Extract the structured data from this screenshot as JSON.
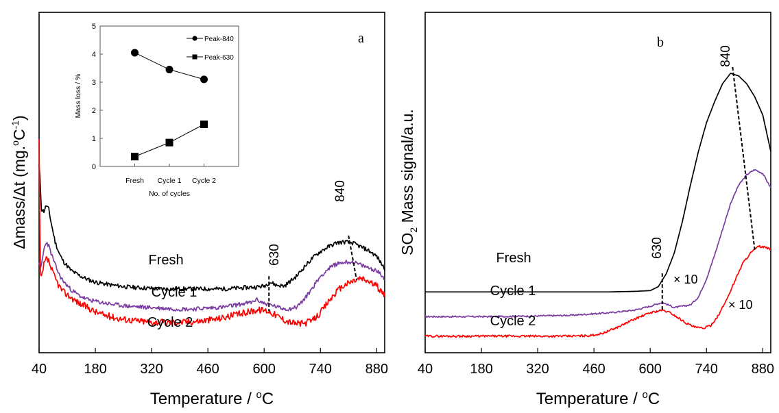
{
  "chart_data": [
    {
      "panel": "a",
      "type": "line",
      "xlabel": "Temperature / oC",
      "xlabel_parts": [
        "Temperature / ",
        "o",
        "C"
      ],
      "ylabel": "Δmass/Δt (mg.oC-1)",
      "ylabel_parts": [
        "Δmass/Δt (mg.",
        "o",
        "C",
        "-1",
        ")"
      ],
      "xticks": [
        40,
        180,
        320,
        460,
        600,
        740,
        880
      ],
      "xlim": [
        40,
        900
      ],
      "grid": false,
      "legend": "none",
      "annotations": [
        {
          "text": "630",
          "x": 612,
          "from_series": "Fresh",
          "to_series": "Cycle 2"
        },
        {
          "text": "840",
          "x_top": 810,
          "x_bottom": 830,
          "from_series": "Fresh",
          "to_series": "Cycle 2"
        }
      ],
      "series": [
        {
          "name": "Fresh",
          "color": "#000000",
          "x": [
            40,
            43,
            46,
            52,
            58,
            64,
            70,
            80,
            90,
            100,
            120,
            140,
            160,
            180,
            220,
            260,
            300,
            340,
            380,
            420,
            460,
            500,
            540,
            580,
            600,
            615,
            630,
            650,
            680,
            700,
            720,
            740,
            760,
            780,
            800,
            820,
            840,
            860,
            880,
            900
          ],
          "y": [
            8.6,
            7.6,
            6.3,
            6.2,
            6.5,
            6.3,
            5.6,
            4.6,
            4.0,
            3.6,
            3.1,
            2.85,
            2.65,
            2.5,
            2.35,
            2.25,
            2.2,
            2.15,
            2.15,
            2.15,
            2.15,
            2.15,
            2.2,
            2.25,
            2.3,
            2.5,
            2.35,
            2.3,
            2.8,
            3.3,
            3.75,
            4.1,
            4.35,
            4.55,
            4.6,
            4.55,
            4.35,
            4.15,
            3.85,
            3.2
          ]
        },
        {
          "name": "Cycle 1",
          "color": "#7a3ca0",
          "x": [
            40,
            43,
            46,
            52,
            58,
            64,
            70,
            80,
            90,
            100,
            120,
            140,
            160,
            180,
            220,
            260,
            300,
            340,
            380,
            420,
            460,
            500,
            540,
            570,
            580,
            600,
            620,
            640,
            660,
            680,
            700,
            720,
            740,
            760,
            780,
            800,
            820,
            840,
            860,
            880,
            900
          ],
          "y": [
            3.6,
            3.1,
            3.4,
            4.2,
            4.6,
            4.4,
            4.0,
            3.4,
            2.9,
            2.55,
            2.1,
            1.8,
            1.6,
            1.5,
            1.35,
            1.25,
            1.2,
            1.15,
            1.1,
            1.1,
            1.15,
            1.2,
            1.35,
            1.45,
            1.6,
            1.4,
            1.3,
            1.15,
            1.1,
            1.2,
            1.6,
            2.2,
            2.8,
            3.2,
            3.45,
            3.55,
            3.55,
            3.4,
            3.25,
            3.1,
            2.7
          ]
        },
        {
          "name": "Cycle 2",
          "color": "#ff0000",
          "x": [
            40,
            42,
            44,
            47,
            52,
            58,
            64,
            70,
            80,
            90,
            100,
            120,
            140,
            160,
            180,
            200,
            240,
            280,
            320,
            360,
            400,
            440,
            480,
            520,
            560,
            580,
            600,
            610,
            620,
            640,
            660,
            680,
            700,
            720,
            740,
            760,
            780,
            800,
            820,
            840,
            860,
            880,
            900
          ],
          "y": [
            9.9,
            5.0,
            2.7,
            2.8,
            3.4,
            3.7,
            3.6,
            3.2,
            2.7,
            2.3,
            2.0,
            1.7,
            1.4,
            1.2,
            0.95,
            0.8,
            0.6,
            0.5,
            0.42,
            0.4,
            0.42,
            0.48,
            0.58,
            0.75,
            0.95,
            1.05,
            1.05,
            1.0,
            0.9,
            0.65,
            0.45,
            0.35,
            0.35,
            0.5,
            0.9,
            1.5,
            2.0,
            2.35,
            2.55,
            2.7,
            2.55,
            2.3,
            1.8
          ]
        }
      ],
      "labels": [
        {
          "series": "Fresh",
          "text": "Fresh"
        },
        {
          "series": "Cycle 1",
          "text": "Cycle 1"
        },
        {
          "series": "Cycle 2",
          "text": "Cycle 2"
        }
      ],
      "corner_label": "a"
    },
    {
      "panel": "a-inset",
      "type": "line",
      "xlabel": "No. of cycles",
      "ylabel": "Mass loss / %",
      "categories": [
        "Fresh",
        "Cycle 1",
        "Cycle 2"
      ],
      "ylim": [
        0,
        5
      ],
      "yticks": [
        0,
        1,
        2,
        3,
        4,
        5
      ],
      "legend": "top-right",
      "series": [
        {
          "name": "Peak-840",
          "marker": "circle",
          "values": [
            4.05,
            3.45,
            3.1
          ]
        },
        {
          "name": "Peak-630",
          "marker": "square",
          "values": [
            0.35,
            0.85,
            1.5
          ]
        }
      ]
    },
    {
      "panel": "b",
      "type": "line",
      "xlabel": "Temperature / oC",
      "xlabel_parts": [
        "Temperature / ",
        "o",
        "C"
      ],
      "ylabel": "SO2 Mass signal/a.u.",
      "ylabel_parts": [
        "SO",
        "2",
        " Mass signal/a.u."
      ],
      "xticks": [
        40,
        180,
        320,
        460,
        600,
        740,
        880
      ],
      "xlim": [
        40,
        900
      ],
      "grid": false,
      "legend": "none",
      "annotations": [
        {
          "text": "630",
          "x": 630,
          "from_series": "Fresh",
          "to_series": "Cycle 2"
        },
        {
          "text": "840",
          "x_top": 805,
          "x_bottom": 860,
          "from_series": "Fresh",
          "to_series": "Cycle 2"
        },
        {
          "text": "× 10",
          "near_series": "Cycle 1"
        },
        {
          "text": "× 10",
          "near_series": "Cycle 2"
        }
      ],
      "series": [
        {
          "name": "Fresh",
          "color": "#000000",
          "x": [
            40,
            100,
            200,
            300,
            400,
            500,
            560,
            600,
            620,
            640,
            660,
            680,
            700,
            720,
            740,
            760,
            780,
            800,
            820,
            840,
            860,
            880,
            900
          ],
          "y": [
            2.1,
            2.1,
            2.1,
            2.1,
            2.1,
            2.1,
            2.12,
            2.15,
            2.3,
            2.8,
            3.6,
            4.8,
            6.2,
            7.5,
            8.6,
            9.4,
            10.1,
            10.5,
            10.4,
            10.1,
            9.6,
            8.9,
            7.5
          ]
        },
        {
          "name": "Cycle 1",
          "color": "#7a3ca0",
          "x": [
            40,
            100,
            200,
            300,
            400,
            500,
            560,
            600,
            630,
            660,
            700,
            720,
            740,
            760,
            780,
            800,
            820,
            840,
            860,
            880,
            900
          ],
          "y": [
            1.15,
            1.15,
            1.15,
            1.17,
            1.2,
            1.3,
            1.4,
            1.55,
            1.7,
            1.5,
            1.6,
            1.9,
            2.6,
            3.5,
            4.5,
            5.5,
            6.2,
            6.6,
            6.8,
            6.65,
            6.1
          ]
        },
        {
          "name": "Cycle 2",
          "color": "#ff0000",
          "x": [
            40,
            100,
            200,
            300,
            400,
            450,
            480,
            520,
            560,
            600,
            630,
            650,
            670,
            690,
            710,
            730,
            750,
            770,
            790,
            810,
            830,
            850,
            870,
            890,
            900
          ],
          "y": [
            0.4,
            0.4,
            0.4,
            0.4,
            0.4,
            0.42,
            0.5,
            0.75,
            1.05,
            1.3,
            1.4,
            1.3,
            1.1,
            0.9,
            0.75,
            0.7,
            0.8,
            1.2,
            1.8,
            2.5,
            3.2,
            3.6,
            3.85,
            3.8,
            3.7
          ]
        }
      ],
      "labels": [
        {
          "series": "Fresh",
          "text": "Fresh"
        },
        {
          "series": "Cycle 1",
          "text": "Cycle 1"
        },
        {
          "series": "Cycle 2",
          "text": "Cycle 2"
        }
      ],
      "corner_label": "b"
    }
  ]
}
